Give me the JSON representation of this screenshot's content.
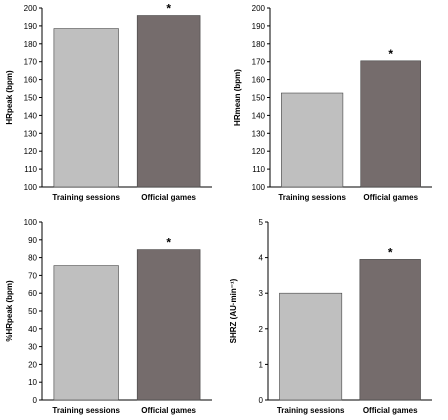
{
  "chart_data": [
    {
      "type": "bar",
      "categories": [
        "Training sessions",
        "Official games"
      ],
      "values": [
        188.5,
        195.8
      ],
      "ylabel": "HRpeak (bpm)",
      "ylim": [
        100,
        200
      ],
      "yticks": [
        "100",
        "110",
        "120",
        "130",
        "140",
        "150",
        "160",
        "170",
        "180",
        "190",
        "200"
      ],
      "significance": [
        "",
        "*"
      ],
      "colors": [
        "#bfbfbf",
        "#756c6c"
      ]
    },
    {
      "type": "bar",
      "categories": [
        "Training sessions",
        "Official games"
      ],
      "values": [
        152.5,
        170.5
      ],
      "ylabel": "HRmean (bpm)",
      "ylim": [
        100,
        200
      ],
      "yticks": [
        "100",
        "110",
        "120",
        "130",
        "140",
        "150",
        "160",
        "170",
        "180",
        "190",
        "200"
      ],
      "significance": [
        "",
        "*"
      ],
      "colors": [
        "#bfbfbf",
        "#756c6c"
      ]
    },
    {
      "type": "bar",
      "categories": [
        "Training sessions",
        "Official games"
      ],
      "values": [
        75.5,
        84.5
      ],
      "ylabel": "%HRpeak (bpm)",
      "ylim": [
        0,
        100
      ],
      "yticks": [
        "0",
        "10",
        "20",
        "30",
        "40",
        "50",
        "60",
        "70",
        "80",
        "90",
        "100"
      ],
      "significance": [
        "",
        "*"
      ],
      "colors": [
        "#bfbfbf",
        "#756c6c"
      ]
    },
    {
      "type": "bar",
      "categories": [
        "Training sessions",
        "Official games"
      ],
      "values": [
        3.0,
        3.95
      ],
      "ylabel": "SHRZ (AU·min⁻¹)",
      "ylim": [
        0,
        5
      ],
      "yticks": [
        "0",
        "1",
        "2",
        "3",
        "4",
        "5"
      ],
      "significance": [
        "",
        "*"
      ],
      "colors": [
        "#bfbfbf",
        "#756c6c"
      ]
    }
  ]
}
